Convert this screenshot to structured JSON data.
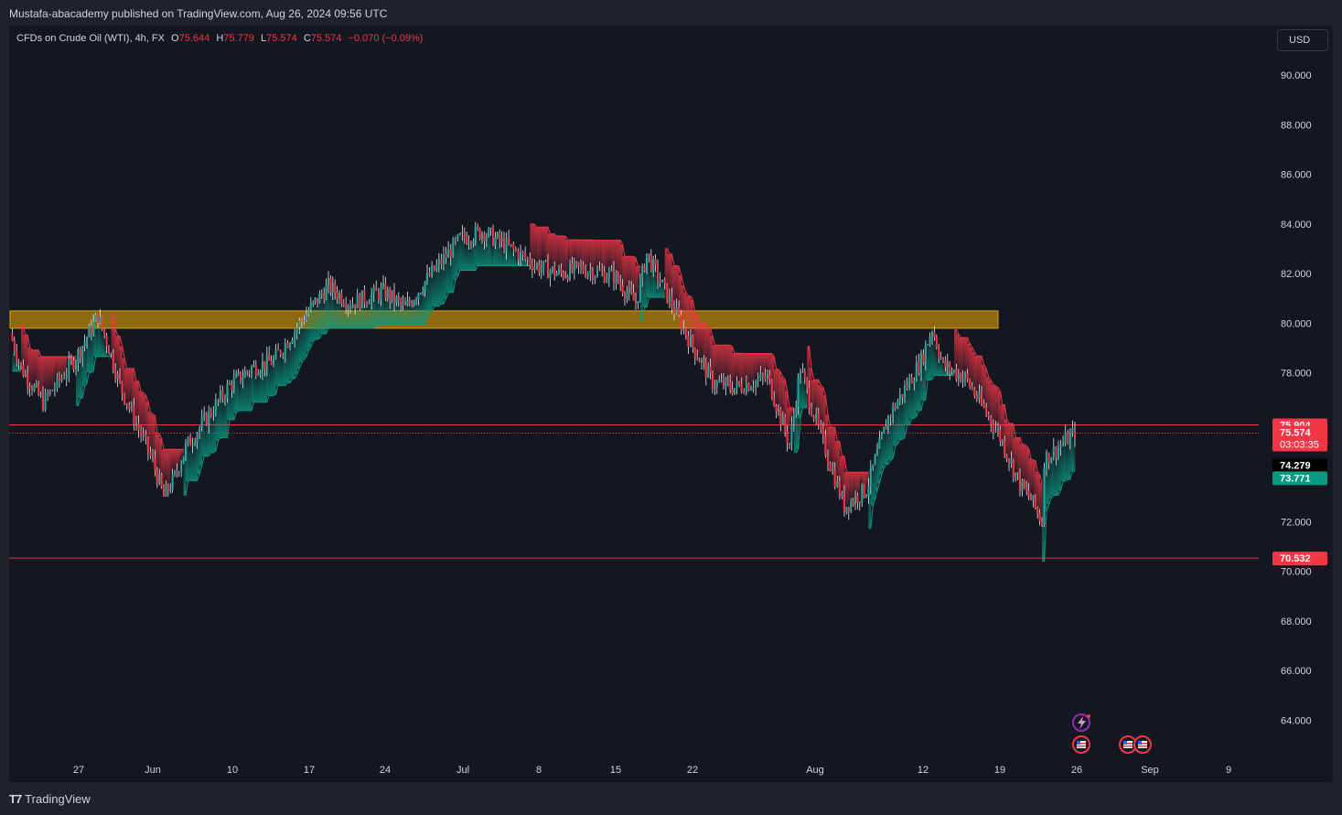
{
  "header": {
    "publisher": "Mustafa-abacademy published on TradingView.com, Aug 26, 2024 09:56 UTC"
  },
  "legend": {
    "symbol": "CFDs on Crude Oil (WTI), 4h, FX",
    "o_label": "O",
    "o": "75.644",
    "h_label": "H",
    "h": "75.779",
    "l_label": "L",
    "l": "75.574",
    "c_label": "C",
    "c": "75.574",
    "change": "−0.070 (−0.09%)"
  },
  "currency": "USD",
  "brand": {
    "name": "TradingView"
  },
  "colors": {
    "background": "#131722",
    "up": "#26a69a",
    "down": "#f23645",
    "grid_text": "#d1d4dc",
    "zone": "#b8860b",
    "cloud_bull": "#089981",
    "cloud_bear": "#f23645"
  },
  "chart_data": {
    "type": "candlestick",
    "symbol": "CFDs on Crude Oil (WTI)",
    "timeframe": "4h",
    "ylim": [
      62.5,
      92.0
    ],
    "y_ticks": [
      "90.000",
      "88.000",
      "86.000",
      "84.000",
      "82.000",
      "80.000",
      "78.000",
      "76.000",
      "74.000",
      "72.000",
      "70.000",
      "68.000",
      "66.000",
      "64.000"
    ],
    "x_ticks": [
      "27",
      "Jun",
      "10",
      "17",
      "24",
      "Jul",
      "8",
      "15",
      "22",
      "Aug",
      "12",
      "19",
      "26",
      "Sep",
      "9"
    ],
    "price_path": [
      {
        "date": "2024-05-21",
        "price": 79.6
      },
      {
        "date": "2024-05-22",
        "price": 78.2
      },
      {
        "date": "2024-05-24",
        "price": 76.8
      },
      {
        "date": "2024-05-27",
        "price": 78.6
      },
      {
        "date": "2024-05-29",
        "price": 80.3
      },
      {
        "date": "2024-05-30",
        "price": 79.0
      },
      {
        "date": "2024-05-31",
        "price": 77.5
      },
      {
        "date": "2024-06-03",
        "price": 74.4
      },
      {
        "date": "2024-06-04",
        "price": 73.0
      },
      {
        "date": "2024-06-05",
        "price": 73.8
      },
      {
        "date": "2024-06-06",
        "price": 75.0
      },
      {
        "date": "2024-06-10",
        "price": 77.5
      },
      {
        "date": "2024-06-12",
        "price": 78.2
      },
      {
        "date": "2024-06-14",
        "price": 78.5
      },
      {
        "date": "2024-06-17",
        "price": 80.4
      },
      {
        "date": "2024-06-19",
        "price": 81.5
      },
      {
        "date": "2024-06-21",
        "price": 80.8
      },
      {
        "date": "2024-06-24",
        "price": 81.3
      },
      {
        "date": "2024-06-26",
        "price": 80.6
      },
      {
        "date": "2024-06-28",
        "price": 81.8
      },
      {
        "date": "2024-07-01",
        "price": 83.4
      },
      {
        "date": "2024-07-03",
        "price": 83.7
      },
      {
        "date": "2024-07-05",
        "price": 83.2
      },
      {
        "date": "2024-07-08",
        "price": 82.3
      },
      {
        "date": "2024-07-10",
        "price": 82.0
      },
      {
        "date": "2024-07-12",
        "price": 82.2
      },
      {
        "date": "2024-07-15",
        "price": 81.9
      },
      {
        "date": "2024-07-17",
        "price": 80.8
      },
      {
        "date": "2024-07-18",
        "price": 82.8
      },
      {
        "date": "2024-07-19",
        "price": 81.9
      },
      {
        "date": "2024-07-22",
        "price": 79.2
      },
      {
        "date": "2024-07-24",
        "price": 77.6
      },
      {
        "date": "2024-07-26",
        "price": 77.4
      },
      {
        "date": "2024-07-29",
        "price": 77.8
      },
      {
        "date": "2024-07-31",
        "price": 75.1
      },
      {
        "date": "2024-08-01",
        "price": 78.2
      },
      {
        "date": "2024-08-02",
        "price": 76.6
      },
      {
        "date": "2024-08-05",
        "price": 72.6
      },
      {
        "date": "2024-08-07",
        "price": 73.3
      },
      {
        "date": "2024-08-09",
        "price": 76.2
      },
      {
        "date": "2024-08-12",
        "price": 78.5
      },
      {
        "date": "2024-08-13",
        "price": 79.8
      },
      {
        "date": "2024-08-14",
        "price": 78.3
      },
      {
        "date": "2024-08-16",
        "price": 77.8
      },
      {
        "date": "2024-08-19",
        "price": 75.6
      },
      {
        "date": "2024-08-21",
        "price": 73.5
      },
      {
        "date": "2024-08-22",
        "price": 72.9
      },
      {
        "date": "2024-08-23",
        "price": 72.0
      },
      {
        "date": "2024-08-23",
        "price": 74.5
      },
      {
        "date": "2024-08-26",
        "price": 75.6
      }
    ],
    "resistance_zone": {
      "from": 79.8,
      "to": 80.5,
      "start": "2024-05-21",
      "end": "2024-08-19",
      "color": "#b8860b"
    },
    "horizontal_lines": [
      {
        "price": 75.904,
        "label": "75.904",
        "color": "#f23645"
      },
      {
        "price": 70.532,
        "label": "70.532",
        "color": "#f23645"
      }
    ],
    "price_labels": [
      {
        "label": "75.904",
        "price": 75.904,
        "color": "#f23645"
      },
      {
        "label": "75.574",
        "sub": "03:03:35",
        "price": 75.574,
        "color": "#f23645"
      },
      {
        "label": "74.279",
        "price": 74.279,
        "color": "#000000"
      },
      {
        "label": "73.771",
        "price": 73.771,
        "color": "#089981"
      }
    ],
    "events": {
      "flash_icon": "lightning-icon",
      "flag_icon": "us-flag-icon"
    }
  }
}
